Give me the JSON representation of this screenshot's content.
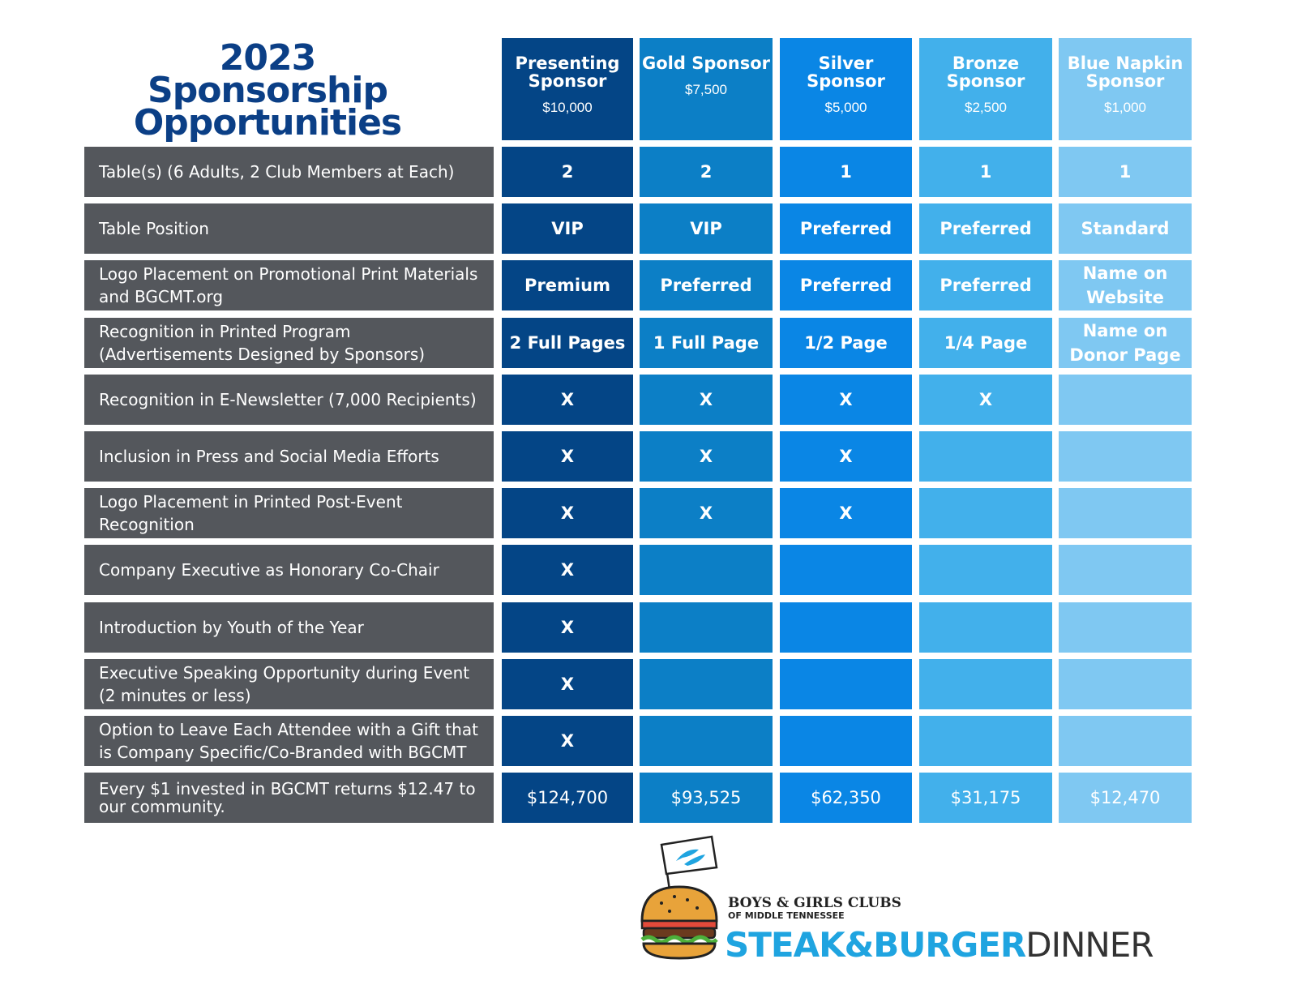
{
  "title": {
    "line1": "2023 Sponsorship",
    "line2": "Opportunities"
  },
  "colors": {
    "presenting": "#044586",
    "gold": "#0c7fc6",
    "silver": "#0a86e5",
    "bronze": "#42b0eb",
    "blue_napkin": "#7fc8f2",
    "label_bg": "#54575c",
    "title": "#0b3f86"
  },
  "tiers": [
    {
      "name": "Presenting Sponsor",
      "price": "$10,000"
    },
    {
      "name": "Gold Sponsor",
      "price": "$7,500"
    },
    {
      "name": "Silver Sponsor",
      "price": "$5,000"
    },
    {
      "name": "Bronze Sponsor",
      "price": "$2,500"
    },
    {
      "name": "Blue Napkin Sponsor",
      "price": "$1,000"
    }
  ],
  "rows": [
    {
      "label": "Table(s) (6 Adults, 2 Club Members at Each)",
      "cells": [
        "2",
        "2",
        "1",
        "1",
        "1"
      ]
    },
    {
      "label": "Table Position",
      "cells": [
        "VIP",
        "VIP",
        "Preferred",
        "Preferred",
        "Standard"
      ]
    },
    {
      "label": "Logo Placement on Promotional Print Materials and BGCMT.org",
      "cells": [
        "Premium",
        "Preferred",
        "Preferred",
        "Preferred",
        "Name on Website"
      ]
    },
    {
      "label": "Recognition in Printed Program (Advertisements Designed by Sponsors)",
      "cells": [
        "2 Full Pages",
        "1 Full Page",
        "1/2 Page",
        "1/4 Page",
        "Name on Donor Page"
      ]
    },
    {
      "label": "Recognition in E-Newsletter (7,000 Recipients)",
      "cells": [
        "X",
        "X",
        "X",
        "X",
        ""
      ]
    },
    {
      "label": "Inclusion in Press and Social Media Efforts",
      "cells": [
        "X",
        "X",
        "X",
        "",
        ""
      ]
    },
    {
      "label": "Logo Placement in Printed Post-Event Recognition",
      "cells": [
        "X",
        "X",
        "X",
        "",
        ""
      ]
    },
    {
      "label": "Company Executive as Honorary Co-Chair",
      "cells": [
        "X",
        "",
        "",
        "",
        ""
      ]
    },
    {
      "label": "Introduction by Youth of the Year",
      "cells": [
        "X",
        "",
        "",
        "",
        ""
      ]
    },
    {
      "label": "Executive Speaking Opportunity during Event (2 minutes or less)",
      "cells": [
        "X",
        "",
        "",
        "",
        ""
      ]
    },
    {
      "label": "Option to Leave Each Attendee with a Gift that is Company Specific/Co-Branded with BGCMT",
      "cells": [
        "X",
        "",
        "",
        "",
        ""
      ]
    },
    {
      "label": "Every $1 invested in BGCMT returns $12.47 to our community.",
      "cells": [
        "$124,700",
        "$93,525",
        "$62,350",
        "$31,175",
        "$12,470"
      ]
    }
  ],
  "logo": {
    "org_line1": "BOYS & GIRLS CLUBS",
    "org_line2": "OF MIDDLE TENNESSEE",
    "event_part1": "STEAK&BURGER",
    "event_part2": "DINNER",
    "icons": [
      "burger-icon",
      "club-flag-icon"
    ]
  }
}
